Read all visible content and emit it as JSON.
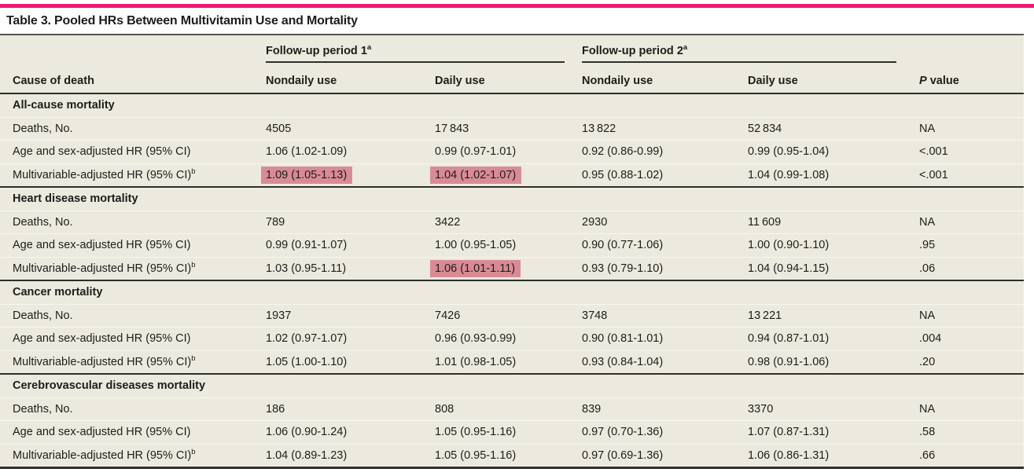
{
  "title": "Table 3. Pooled HRs Between Multivitamin Use and Mortality",
  "colors": {
    "accent_rule": "#ec1a6e",
    "table_background": "#eceade",
    "highlight": "#d98b95",
    "dark_border": "#2e2e2c",
    "text": "#1d1d1b"
  },
  "header": {
    "cause_col": "Cause of death",
    "group1": {
      "label": "Follow-up period 1",
      "sup": "a"
    },
    "group2": {
      "label": "Follow-up period 2",
      "sup": "a"
    },
    "sub1": "Nondaily use",
    "sub2": "Daily use",
    "sub3": "Nondaily use",
    "sub4": "Daily use",
    "p_italic": "P",
    "p_rest": " value"
  },
  "sections": [
    {
      "name": "All-cause mortality",
      "rows": [
        {
          "label": "Deaths, No.",
          "values": [
            "4505",
            "17 843",
            "13 822",
            "52 834",
            "NA"
          ]
        },
        {
          "label": "Age and sex-adjusted HR (95% CI)",
          "values": [
            "1.06 (1.02-1.09)",
            "0.99 (0.97-1.01)",
            "0.92 (0.86-0.99)",
            "0.99 (0.95-1.04)",
            "<.001"
          ]
        },
        {
          "label": "Multivariable-adjusted HR (95% CI)",
          "sup": "b",
          "values": [
            "1.09 (1.05-1.13)",
            "1.04 (1.02-1.07)",
            "0.95 (0.88-1.02)",
            "1.04 (0.99-1.08)",
            "<.001"
          ],
          "highlighted_value_indexes": [
            0,
            1
          ]
        }
      ]
    },
    {
      "name": "Heart disease mortality",
      "rows": [
        {
          "label": "Deaths, No.",
          "values": [
            "789",
            "3422",
            "2930",
            "11 609",
            "NA"
          ]
        },
        {
          "label": "Age and sex-adjusted HR (95% CI)",
          "values": [
            "0.99 (0.91-1.07)",
            "1.00 (0.95-1.05)",
            "0.90 (0.77-1.06)",
            "1.00 (0.90-1.10)",
            ".95"
          ]
        },
        {
          "label": "Multivariable-adjusted HR (95% CI)",
          "sup": "b",
          "values": [
            "1.03 (0.95-1.11)",
            "1.06 (1.01-1.11)",
            "0.93 (0.79-1.10)",
            "1.04 (0.94-1.15)",
            ".06"
          ],
          "highlighted_value_indexes": [
            1
          ]
        }
      ]
    },
    {
      "name": "Cancer mortality",
      "rows": [
        {
          "label": "Deaths, No.",
          "values": [
            "1937",
            "7426",
            "3748",
            "13 221",
            "NA"
          ]
        },
        {
          "label": "Age and sex-adjusted HR (95% CI)",
          "values": [
            "1.02 (0.97-1.07)",
            "0.96 (0.93-0.99)",
            "0.90 (0.81-1.01)",
            "0.94 (0.87-1.01)",
            ".004"
          ]
        },
        {
          "label": "Multivariable-adjusted HR (95% CI)",
          "sup": "b",
          "values": [
            "1.05 (1.00-1.10)",
            "1.01 (0.98-1.05)",
            "0.93 (0.84-1.04)",
            "0.98 (0.91-1.06)",
            ".20"
          ]
        }
      ]
    },
    {
      "name": "Cerebrovascular diseases mortality",
      "rows": [
        {
          "label": "Deaths, No.",
          "values": [
            "186",
            "808",
            "839",
            "3370",
            "NA"
          ]
        },
        {
          "label": "Age and sex-adjusted HR (95% CI)",
          "values": [
            "1.06 (0.90-1.24)",
            "1.05 (0.95-1.16)",
            "0.97 (0.70-1.36)",
            "1.07 (0.87-1.31)",
            ".58"
          ]
        },
        {
          "label": "Multivariable-adjusted HR (95% CI)",
          "sup": "b",
          "values": [
            "1.04 (0.89-1.23)",
            "1.05 (0.95-1.16)",
            "0.97 (0.69-1.36)",
            "1.06 (0.86-1.31)",
            ".66"
          ]
        }
      ]
    }
  ]
}
